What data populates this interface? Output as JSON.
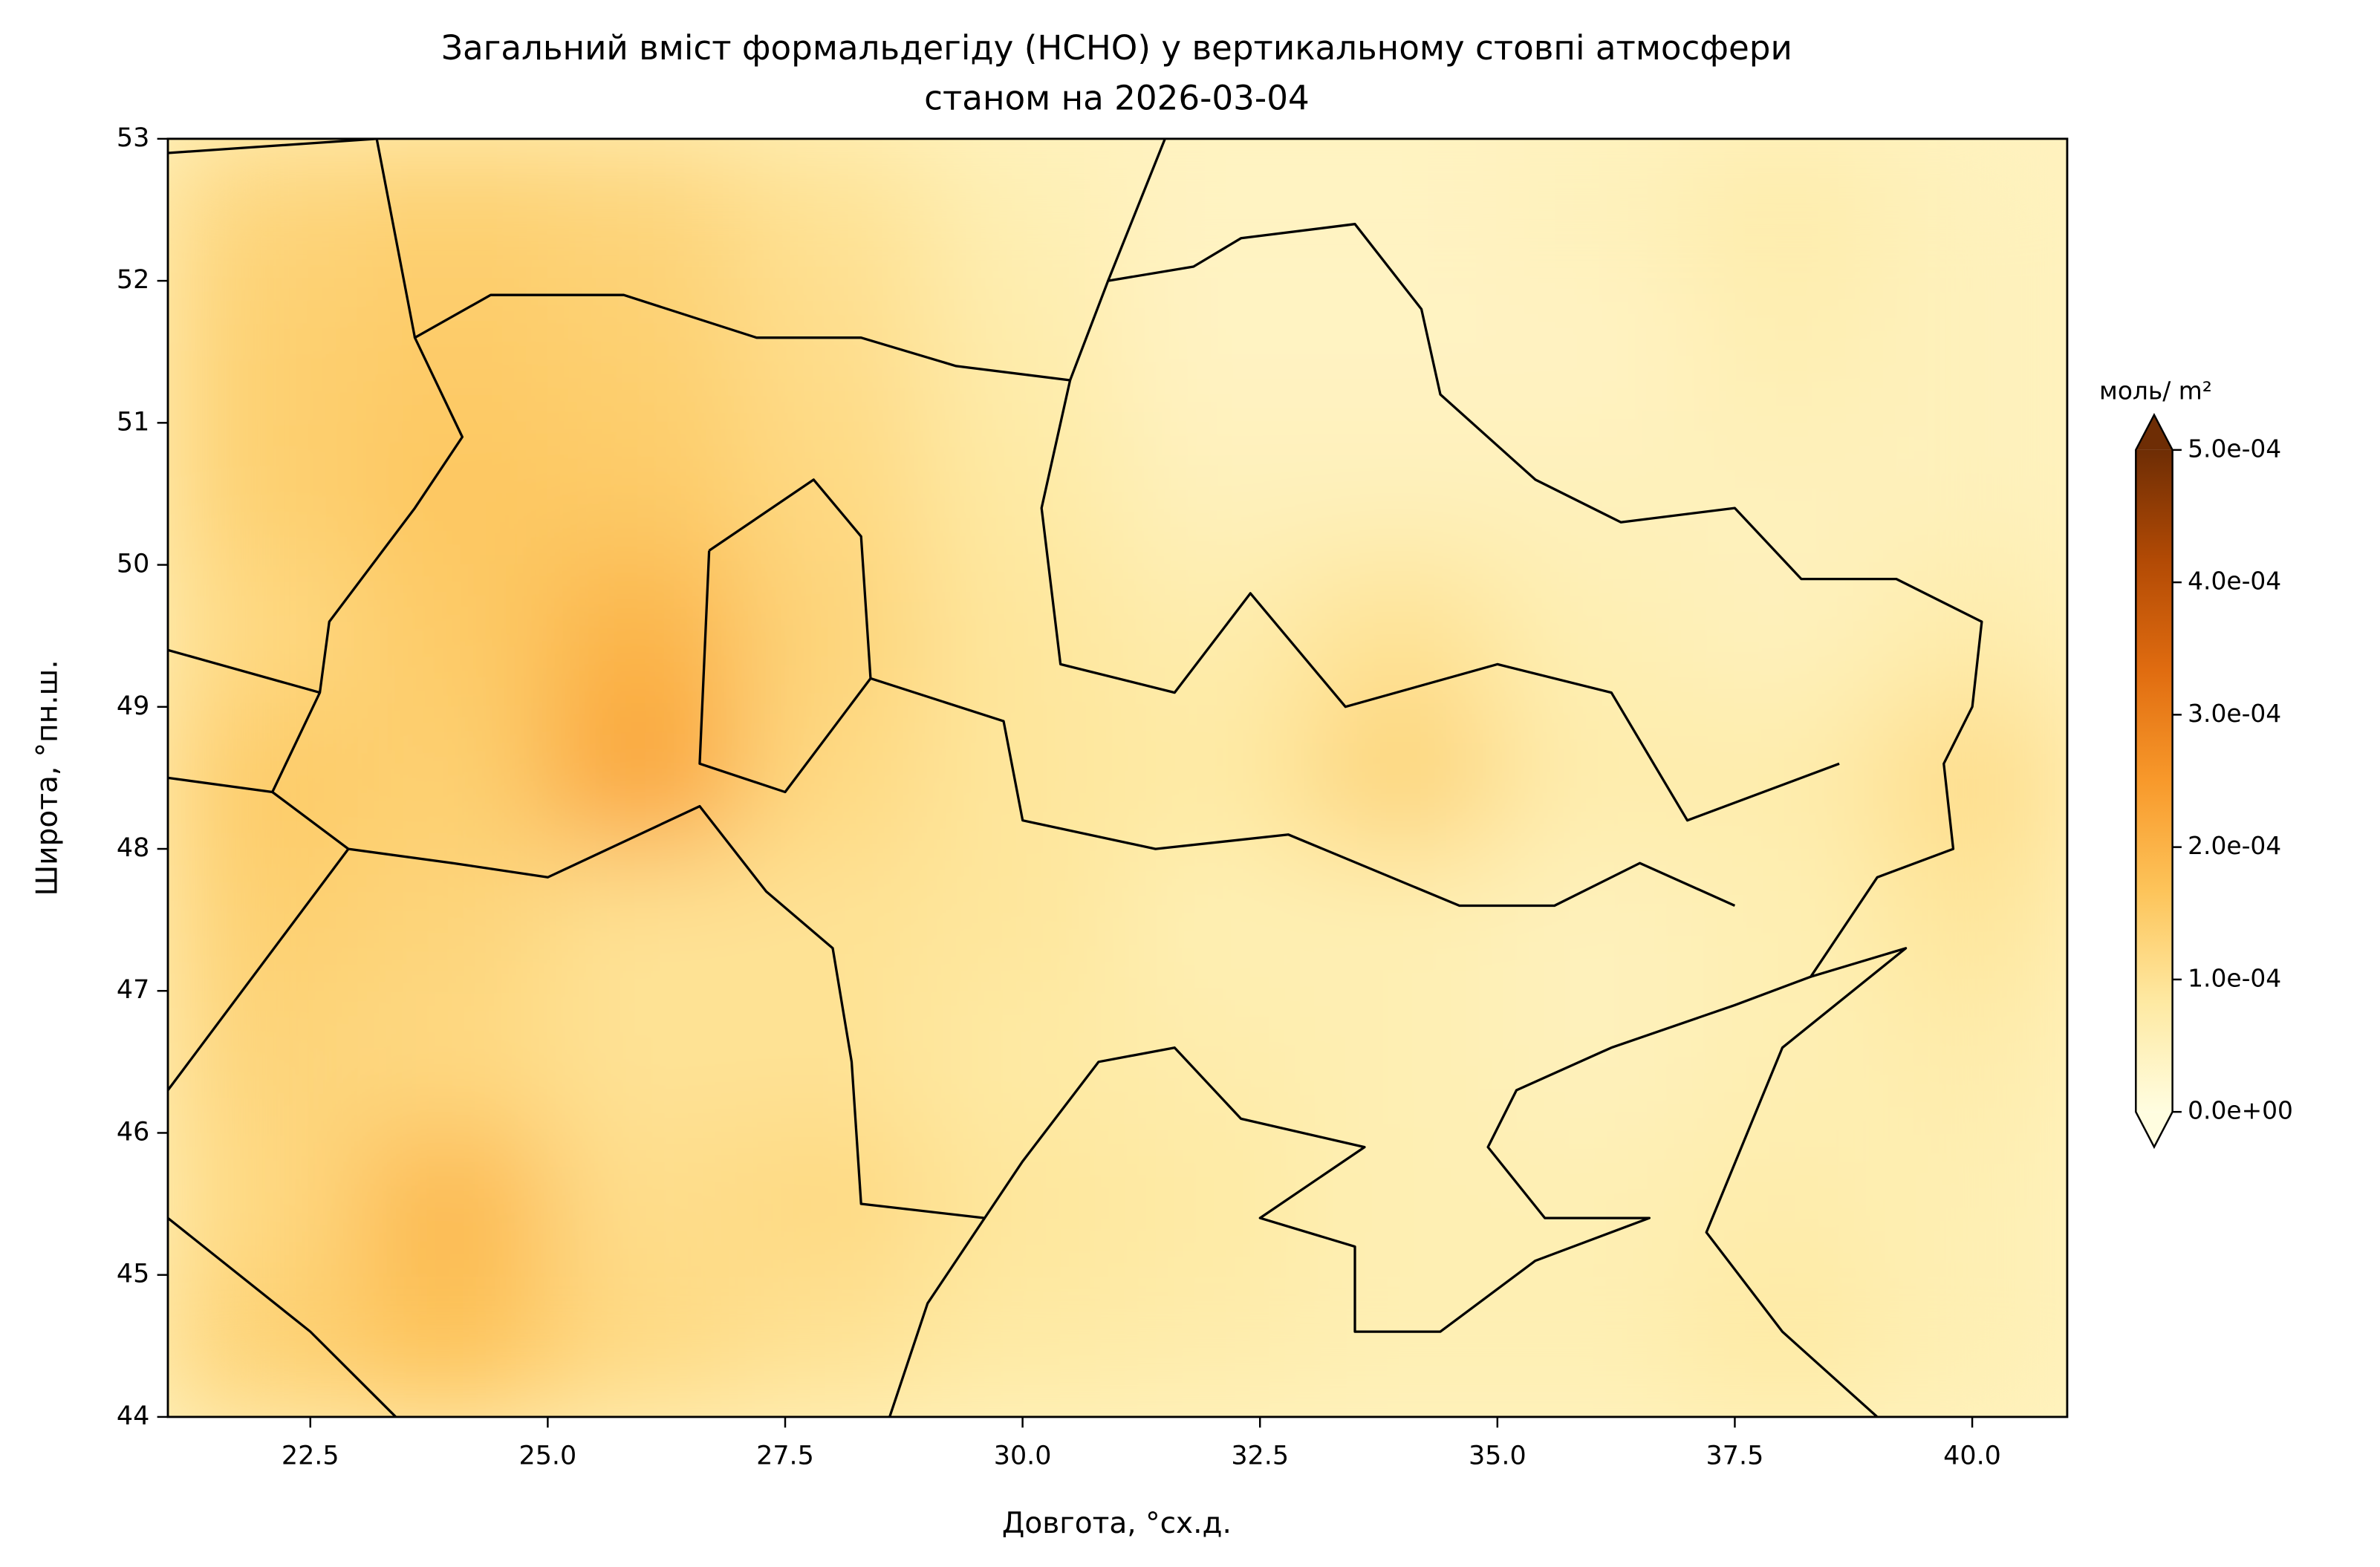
{
  "chart_data": {
    "type": "contour-map",
    "title": [
      "Загальний вміст формальдегіду (HCHO) у вертикальному стовпі атмосфери",
      "станом на 2026-03-04"
    ],
    "xlabel": "Довгота, °сх.д.",
    "ylabel": "Широта, °пн.ш.",
    "xlim": [
      21,
      41
    ],
    "ylim": [
      44,
      53
    ],
    "xticks": [
      22.5,
      {
        "value": 25,
        "label": "25.0"
      },
      27.5,
      {
        "value": 30,
        "label": "30.0"
      },
      32.5,
      {
        "value": 35,
        "label": "35.0"
      },
      37.5,
      {
        "value": 40,
        "label": "40.0"
      }
    ],
    "yticks": [
      44,
      45,
      46,
      47,
      48,
      49,
      50,
      51,
      52,
      53
    ],
    "grid": false,
    "lon": [
      22,
      24,
      26,
      28,
      30,
      32,
      34,
      36,
      38,
      40
    ],
    "lat": [
      52.5,
      51.5,
      50.5,
      49.5,
      48.5,
      47.5,
      46.5,
      45.5,
      44.5
    ],
    "values": [
      [
        0.00013,
        0.00014,
        0.00013,
        0.0001,
        6e-05,
        4e-05,
        4e-05,
        5e-05,
        7e-05,
        5e-05
      ],
      [
        0.00014,
        0.00015,
        0.00014,
        0.00011,
        7e-05,
        4e-05,
        4e-05,
        4e-05,
        6e-05,
        5e-05
      ],
      [
        0.00014,
        0.00016,
        0.00015,
        0.00012,
        8e-05,
        5e-05,
        5e-05,
        5e-05,
        5e-05,
        5e-05
      ],
      [
        0.00012,
        0.00015,
        0.0002,
        0.00013,
        9e-05,
        7e-05,
        0.0001,
        6e-05,
        5e-05,
        7e-05
      ],
      [
        0.00015,
        0.00014,
        0.00023,
        0.00012,
        9e-05,
        8e-05,
        0.00013,
        7e-05,
        7e-05,
        0.00011
      ],
      [
        0.00014,
        0.00013,
        0.0001,
        0.0001,
        9e-05,
        6e-05,
        6e-05,
        5e-05,
        6e-05,
        9e-05
      ],
      [
        0.00013,
        0.00012,
        0.0001,
        0.0001,
        8e-05,
        7e-05,
        6e-05,
        5e-05,
        6e-05,
        7e-05
      ],
      [
        0.00012,
        0.00019,
        0.00011,
        0.00012,
        9e-05,
        8e-05,
        6e-05,
        6e-05,
        7e-05,
        6e-05
      ],
      [
        0.00014,
        0.00017,
        0.00012,
        0.0001,
        8e-05,
        7e-05,
        6e-05,
        6e-05,
        8e-05,
        6e-05
      ]
    ],
    "colorbar": {
      "label": "моль/ m²",
      "lim": [
        0,
        0.0005
      ],
      "ticks": [
        {
          "value": 0,
          "label": "0.0e+00"
        },
        {
          "value": 0.0001,
          "label": "1.0e-04"
        },
        {
          "value": 0.0002,
          "label": "2.0e-04"
        },
        {
          "value": 0.0003,
          "label": "3.0e-04"
        },
        {
          "value": 0.0004,
          "label": "4.0e-04"
        },
        {
          "value": 0.0005,
          "label": "5.0e-04"
        }
      ],
      "extend": "both",
      "colors": [
        "#fffde0",
        "#fee9a2",
        "#fdc45a",
        "#f8992b",
        "#e06c10",
        "#b24a05",
        "#6e2d05"
      ]
    }
  }
}
